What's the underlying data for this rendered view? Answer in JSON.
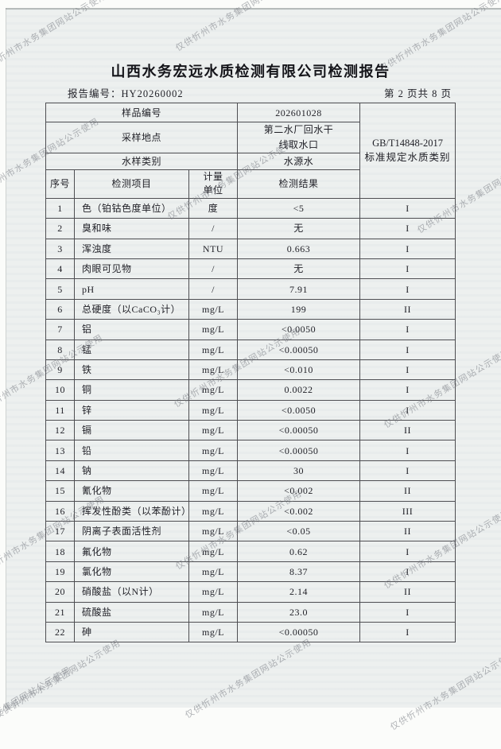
{
  "watermark": {
    "text": "仅供忻州市水务集团网站公示使用"
  },
  "report": {
    "title": "山西水务宏远水质检测有限公司检测报告",
    "report_no_label": "报告编号：",
    "report_no": "HY20260002",
    "page_info": "第 2 页共 8 页"
  },
  "sample": {
    "sample_no": {
      "label": "样品编号",
      "value": "202601028"
    },
    "location": {
      "label": "采样地点",
      "value": "第二水厂回水干线取水口"
    },
    "category": {
      "label": "水样类别",
      "value": "水源水"
    },
    "standard": {
      "code": "GB/T14848-2017",
      "desc": "标准规定水质类别"
    }
  },
  "table": {
    "headers": {
      "no": "序号",
      "item": "检测项目",
      "unit": "计量单位",
      "result": "检测结果"
    },
    "rows": [
      {
        "no": "1",
        "item": "色（铂钴色度单位）",
        "unit": "度",
        "result": "<5",
        "grade": "I"
      },
      {
        "no": "2",
        "item": "臭和味",
        "unit": "/",
        "result": "无",
        "grade": "I"
      },
      {
        "no": "3",
        "item": "浑浊度",
        "unit": "NTU",
        "result": "0.663",
        "grade": "I"
      },
      {
        "no": "4",
        "item": "肉眼可见物",
        "unit": "/",
        "result": "无",
        "grade": "I"
      },
      {
        "no": "5",
        "item": "pH",
        "unit": "/",
        "result": "7.91",
        "grade": "I"
      },
      {
        "no": "6",
        "item": "总硬度（以CaCO₃计）",
        "unit": "mg/L",
        "result": "199",
        "grade": "II"
      },
      {
        "no": "7",
        "item": "铝",
        "unit": "mg/L",
        "result": "<0.0050",
        "grade": "I"
      },
      {
        "no": "8",
        "item": "锰",
        "unit": "mg/L",
        "result": "<0.00050",
        "grade": "I"
      },
      {
        "no": "9",
        "item": "铁",
        "unit": "mg/L",
        "result": "<0.010",
        "grade": "I"
      },
      {
        "no": "10",
        "item": "铜",
        "unit": "mg/L",
        "result": "0.0022",
        "grade": "I"
      },
      {
        "no": "11",
        "item": "锌",
        "unit": "mg/L",
        "result": "<0.0050",
        "grade": "I"
      },
      {
        "no": "12",
        "item": "镉",
        "unit": "mg/L",
        "result": "<0.00050",
        "grade": "II"
      },
      {
        "no": "13",
        "item": "铅",
        "unit": "mg/L",
        "result": "<0.00050",
        "grade": "I"
      },
      {
        "no": "14",
        "item": "钠",
        "unit": "mg/L",
        "result": "30",
        "grade": "I"
      },
      {
        "no": "15",
        "item": "氰化物",
        "unit": "mg/L",
        "result": "<0.002",
        "grade": "II"
      },
      {
        "no": "16",
        "item": "挥发性酚类（以苯酚计）",
        "unit": "mg/L",
        "result": "<0.002",
        "grade": "III"
      },
      {
        "no": "17",
        "item": "阴离子表面活性剂",
        "unit": "mg/L",
        "result": "<0.05",
        "grade": "II"
      },
      {
        "no": "18",
        "item": "氟化物",
        "unit": "mg/L",
        "result": "0.62",
        "grade": "I"
      },
      {
        "no": "19",
        "item": "氯化物",
        "unit": "mg/L",
        "result": "8.37",
        "grade": "I"
      },
      {
        "no": "20",
        "item": "硝酸盐（以N计）",
        "unit": "mg/L",
        "result": "2.14",
        "grade": "II"
      },
      {
        "no": "21",
        "item": "硫酸盐",
        "unit": "mg/L",
        "result": "23.0",
        "grade": "I"
      },
      {
        "no": "22",
        "item": "砷",
        "unit": "mg/L",
        "result": "<0.00050",
        "grade": "I"
      }
    ]
  }
}
